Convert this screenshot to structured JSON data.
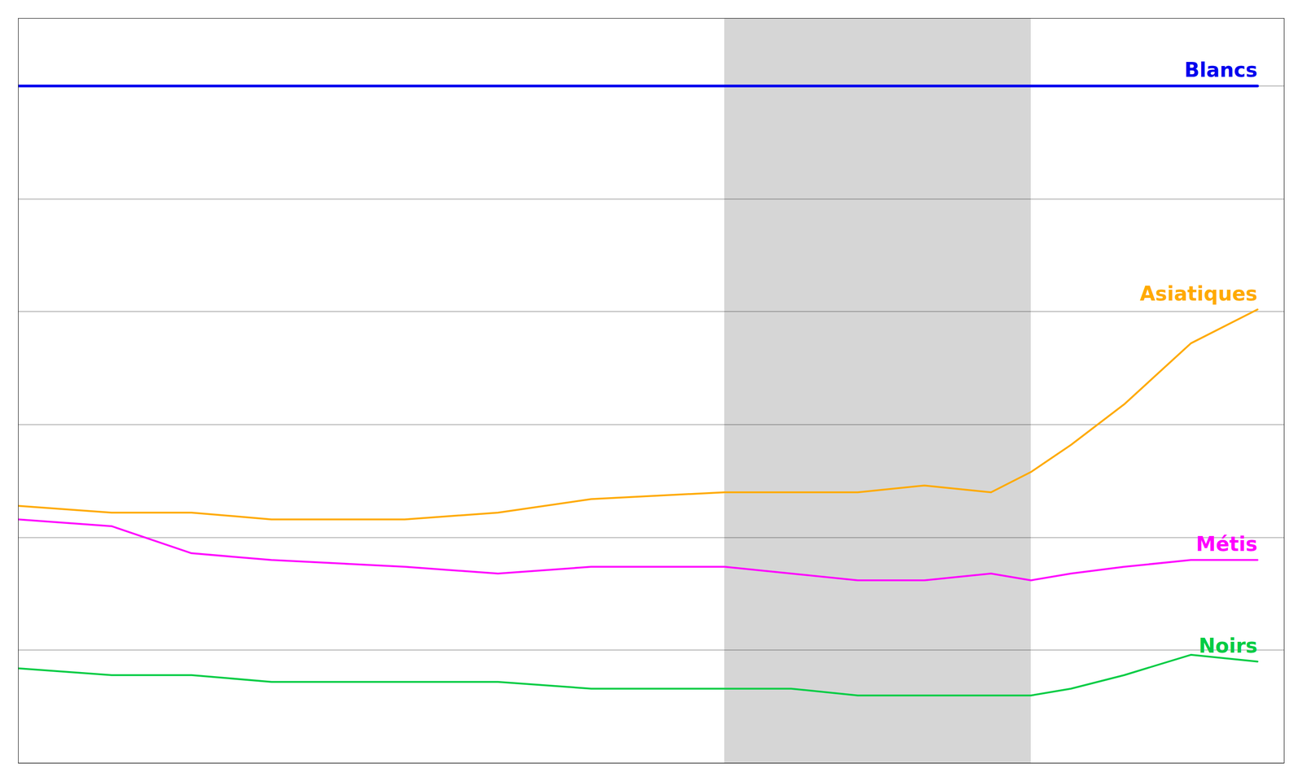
{
  "chart_data": {
    "type": "line",
    "xlim": [
      1917,
      2012
    ],
    "ylim": [
      0.0,
      1.1
    ],
    "yticks": [
      0.0,
      0.167,
      0.333,
      0.5,
      0.667,
      0.833,
      1.0
    ],
    "grid": true,
    "tick_labels": false,
    "shaded_range": [
      1970,
      1993
    ],
    "x": [
      1917,
      1924,
      1930,
      1936,
      1946,
      1953,
      1960,
      1970,
      1975,
      1980,
      1985,
      1990,
      1993,
      1996,
      2000,
      2005,
      2010
    ],
    "series": [
      {
        "name": "Blancs",
        "color": "#0000ee",
        "values": [
          1.0,
          1.0,
          1.0,
          1.0,
          1.0,
          1.0,
          1.0,
          1.0,
          1.0,
          1.0,
          1.0,
          1.0,
          1.0,
          1.0,
          1.0,
          1.0,
          1.0
        ]
      },
      {
        "name": "Asiatiques",
        "color": "#ffaa00",
        "values": [
          0.38,
          0.37,
          0.37,
          0.36,
          0.36,
          0.37,
          0.39,
          0.4,
          0.4,
          0.4,
          0.41,
          0.4,
          0.43,
          0.47,
          0.53,
          0.62,
          0.67
        ]
      },
      {
        "name": "Métis",
        "color": "#ff00ff",
        "values": [
          0.36,
          0.35,
          0.31,
          0.3,
          0.29,
          0.28,
          0.29,
          0.29,
          0.28,
          0.27,
          0.27,
          0.28,
          0.27,
          0.28,
          0.29,
          0.3,
          0.3
        ]
      },
      {
        "name": "Noirs",
        "color": "#00cc44",
        "values": [
          0.14,
          0.13,
          0.13,
          0.12,
          0.12,
          0.12,
          0.11,
          0.11,
          0.11,
          0.1,
          0.1,
          0.1,
          0.1,
          0.11,
          0.13,
          0.16,
          0.15
        ]
      }
    ]
  }
}
